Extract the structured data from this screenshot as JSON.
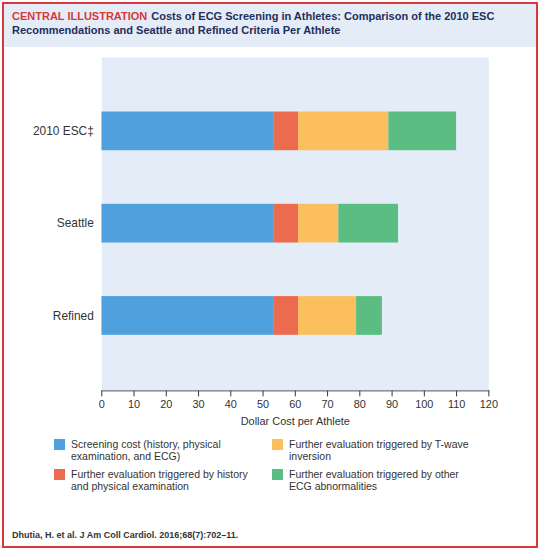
{
  "chart_data": {
    "type": "bar",
    "orientation": "horizontal",
    "stacked": true,
    "header": "CENTRAL ILLUSTRATION",
    "title": "Costs of ECG Screening in Athletes: Comparison of the 2010 ESC Recommendations and Seattle and Refined Criteria Per Athlete",
    "source": "Dhutia, H. et al. J Am Coll Cardiol. 2016;68(7):702–11.",
    "xlabel": "Dollar Cost per Athlete",
    "categories": [
      "2010 ESC‡",
      "Seattle",
      "Refined"
    ],
    "series": [
      {
        "name": "Screening cost (history, physical examination, and ECG)",
        "color": "#4ea1dc",
        "values": [
          53.5,
          53.5,
          53.5
        ]
      },
      {
        "name": "Further evaluation triggered by history and physical examination",
        "color": "#ec6a4e",
        "values": [
          7.5,
          7.5,
          7.5
        ]
      },
      {
        "name": "Further evaluation triggered by T-wave inversion",
        "color": "#fbbf5e",
        "values": [
          28,
          12.5,
          18
        ]
      },
      {
        "name": "Further evaluation triggered by other ECG abnormalities",
        "color": "#5bbd82",
        "values": [
          21,
          18.5,
          8
        ]
      }
    ],
    "xlim": [
      0,
      120
    ],
    "xticks": [
      0,
      10,
      20,
      30,
      40,
      50,
      60,
      70,
      80,
      90,
      100,
      110,
      120
    ],
    "grid": false
  }
}
